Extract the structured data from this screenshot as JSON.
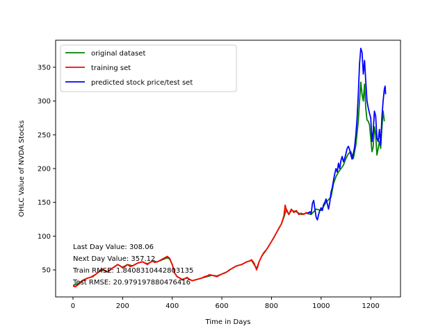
{
  "chart_data": {
    "type": "line",
    "title": "",
    "xlabel": "Time in Days",
    "ylabel": "OHLC Value of NVDA Stocks",
    "xlim": [
      -70,
      1320
    ],
    "ylim": [
      10,
      390
    ],
    "xticks": [
      0,
      200,
      400,
      600,
      800,
      1000,
      1200
    ],
    "yticks": [
      50,
      100,
      150,
      200,
      250,
      300,
      350
    ],
    "grid": false,
    "legend_position": "top-left",
    "series": [
      {
        "name": "original dataset",
        "color": "#008000",
        "points": [
          [
            0,
            27
          ],
          [
            20,
            29
          ],
          [
            40,
            35
          ],
          [
            60,
            38
          ],
          [
            80,
            40
          ],
          [
            100,
            46
          ],
          [
            120,
            50
          ],
          [
            140,
            47
          ],
          [
            160,
            53
          ],
          [
            180,
            58
          ],
          [
            200,
            54
          ],
          [
            220,
            58
          ],
          [
            240,
            56
          ],
          [
            260,
            60
          ],
          [
            280,
            62
          ],
          [
            300,
            59
          ],
          [
            320,
            63
          ],
          [
            340,
            62
          ],
          [
            360,
            65
          ],
          [
            380,
            68
          ],
          [
            390,
            66
          ],
          [
            400,
            58
          ],
          [
            410,
            45
          ],
          [
            420,
            40
          ],
          [
            440,
            36
          ],
          [
            460,
            38
          ],
          [
            480,
            34
          ],
          [
            500,
            36
          ],
          [
            520,
            38
          ],
          [
            540,
            40
          ],
          [
            560,
            42
          ],
          [
            580,
            41
          ],
          [
            600,
            44
          ],
          [
            620,
            47
          ],
          [
            640,
            52
          ],
          [
            660,
            56
          ],
          [
            680,
            58
          ],
          [
            700,
            62
          ],
          [
            720,
            64
          ],
          [
            740,
            52
          ],
          [
            750,
            62
          ],
          [
            760,
            70
          ],
          [
            780,
            80
          ],
          [
            800,
            92
          ],
          [
            820,
            105
          ],
          [
            840,
            118
          ],
          [
            850,
            128
          ],
          [
            860,
            140
          ],
          [
            870,
            132
          ],
          [
            880,
            138
          ],
          [
            900,
            136
          ],
          [
            920,
            132
          ],
          [
            940,
            134
          ],
          [
            960,
            132
          ],
          [
            980,
            140
          ],
          [
            1000,
            138
          ],
          [
            1020,
            150
          ],
          [
            1040,
            158
          ],
          [
            1050,
            178
          ],
          [
            1060,
            188
          ],
          [
            1070,
            195
          ],
          [
            1080,
            200
          ],
          [
            1090,
            205
          ],
          [
            1100,
            215
          ],
          [
            1110,
            222
          ],
          [
            1120,
            225
          ],
          [
            1130,
            215
          ],
          [
            1140,
            235
          ],
          [
            1150,
            270
          ],
          [
            1155,
            300
          ],
          [
            1160,
            328
          ],
          [
            1165,
            310
          ],
          [
            1170,
            300
          ],
          [
            1175,
            325
          ],
          [
            1180,
            290
          ],
          [
            1185,
            272
          ],
          [
            1190,
            270
          ],
          [
            1195,
            265
          ],
          [
            1200,
            245
          ],
          [
            1205,
            225
          ],
          [
            1210,
            232
          ],
          [
            1215,
            262
          ],
          [
            1220,
            250
          ],
          [
            1225,
            220
          ],
          [
            1230,
            230
          ],
          [
            1235,
            240
          ],
          [
            1240,
            230
          ],
          [
            1245,
            260
          ],
          [
            1250,
            285
          ],
          [
            1255,
            270
          ]
        ]
      },
      {
        "name": "training set",
        "color": "#ff0000",
        "points": [
          [
            0,
            26
          ],
          [
            10,
            25
          ],
          [
            20,
            28
          ],
          [
            30,
            31
          ],
          [
            40,
            34
          ],
          [
            50,
            36
          ],
          [
            60,
            38
          ],
          [
            70,
            39
          ],
          [
            80,
            41
          ],
          [
            90,
            43
          ],
          [
            100,
            46
          ],
          [
            110,
            49
          ],
          [
            120,
            51
          ],
          [
            130,
            48
          ],
          [
            140,
            47
          ],
          [
            150,
            50
          ],
          [
            160,
            53
          ],
          [
            170,
            55
          ],
          [
            180,
            58
          ],
          [
            190,
            56
          ],
          [
            200,
            53
          ],
          [
            210,
            55
          ],
          [
            220,
            58
          ],
          [
            230,
            55
          ],
          [
            240,
            56
          ],
          [
            250,
            58
          ],
          [
            260,
            60
          ],
          [
            270,
            61
          ],
          [
            280,
            62
          ],
          [
            290,
            60
          ],
          [
            300,
            58
          ],
          [
            310,
            61
          ],
          [
            320,
            63
          ],
          [
            330,
            61
          ],
          [
            340,
            62
          ],
          [
            350,
            64
          ],
          [
            360,
            66
          ],
          [
            370,
            68
          ],
          [
            380,
            70
          ],
          [
            390,
            67
          ],
          [
            400,
            58
          ],
          [
            405,
            52
          ],
          [
            410,
            45
          ],
          [
            420,
            40
          ],
          [
            430,
            38
          ],
          [
            440,
            35
          ],
          [
            450,
            37
          ],
          [
            460,
            39
          ],
          [
            470,
            36
          ],
          [
            480,
            34
          ],
          [
            490,
            35
          ],
          [
            500,
            36
          ],
          [
            510,
            37
          ],
          [
            520,
            38
          ],
          [
            530,
            40
          ],
          [
            540,
            41
          ],
          [
            550,
            43
          ],
          [
            560,
            42
          ],
          [
            570,
            41
          ],
          [
            580,
            40
          ],
          [
            590,
            42
          ],
          [
            600,
            44
          ],
          [
            610,
            45
          ],
          [
            620,
            47
          ],
          [
            630,
            50
          ],
          [
            640,
            52
          ],
          [
            650,
            54
          ],
          [
            660,
            56
          ],
          [
            670,
            57
          ],
          [
            680,
            58
          ],
          [
            690,
            60
          ],
          [
            700,
            62
          ],
          [
            710,
            63
          ],
          [
            720,
            65
          ],
          [
            730,
            60
          ],
          [
            740,
            50
          ],
          [
            745,
            55
          ],
          [
            750,
            62
          ],
          [
            760,
            70
          ],
          [
            770,
            76
          ],
          [
            780,
            80
          ],
          [
            790,
            86
          ],
          [
            800,
            92
          ],
          [
            810,
            98
          ],
          [
            820,
            105
          ],
          [
            830,
            112
          ],
          [
            840,
            118
          ],
          [
            845,
            124
          ],
          [
            850,
            130
          ],
          [
            855,
            146
          ],
          [
            860,
            138
          ],
          [
            870,
            132
          ],
          [
            880,
            140
          ],
          [
            890,
            135
          ],
          [
            900,
            138
          ],
          [
            910,
            132
          ],
          [
            920,
            134
          ],
          [
            930,
            132
          ],
          [
            940,
            135
          ],
          [
            950,
            133
          ]
        ]
      },
      {
        "name": "predicted stock price/test set",
        "color": "#0000ff",
        "points": [
          [
            945,
            134
          ],
          [
            955,
            136
          ],
          [
            960,
            133
          ],
          [
            965,
            148
          ],
          [
            970,
            153
          ],
          [
            975,
            140
          ],
          [
            980,
            128
          ],
          [
            985,
            124
          ],
          [
            990,
            132
          ],
          [
            995,
            138
          ],
          [
            1000,
            142
          ],
          [
            1005,
            138
          ],
          [
            1010,
            147
          ],
          [
            1015,
            150
          ],
          [
            1020,
            155
          ],
          [
            1025,
            148
          ],
          [
            1030,
            140
          ],
          [
            1035,
            150
          ],
          [
            1040,
            165
          ],
          [
            1045,
            172
          ],
          [
            1050,
            183
          ],
          [
            1055,
            192
          ],
          [
            1060,
            200
          ],
          [
            1065,
            195
          ],
          [
            1070,
            208
          ],
          [
            1075,
            200
          ],
          [
            1080,
            212
          ],
          [
            1085,
            218
          ],
          [
            1090,
            210
          ],
          [
            1095,
            215
          ],
          [
            1100,
            222
          ],
          [
            1105,
            230
          ],
          [
            1110,
            233
          ],
          [
            1115,
            228
          ],
          [
            1120,
            220
          ],
          [
            1125,
            214
          ],
          [
            1130,
            222
          ],
          [
            1135,
            232
          ],
          [
            1140,
            250
          ],
          [
            1145,
            275
          ],
          [
            1150,
            310
          ],
          [
            1155,
            355
          ],
          [
            1160,
            378
          ],
          [
            1165,
            372
          ],
          [
            1170,
            340
          ],
          [
            1175,
            360
          ],
          [
            1180,
            330
          ],
          [
            1185,
            300
          ],
          [
            1190,
            290
          ],
          [
            1195,
            282
          ],
          [
            1200,
            275
          ],
          [
            1205,
            240
          ],
          [
            1210,
            255
          ],
          [
            1215,
            285
          ],
          [
            1220,
            278
          ],
          [
            1225,
            245
          ],
          [
            1230,
            240
          ],
          [
            1235,
            258
          ],
          [
            1240,
            235
          ],
          [
            1245,
            275
          ],
          [
            1250,
            300
          ],
          [
            1255,
            318
          ],
          [
            1258,
            322
          ],
          [
            1260,
            310
          ]
        ]
      }
    ],
    "annotations": [
      "Last Day Value: 308.06",
      "Next Day Value: 357.12",
      "Train RMSE: 1.8408310442803135",
      "Test RMSE: 20.979197880476416"
    ]
  }
}
